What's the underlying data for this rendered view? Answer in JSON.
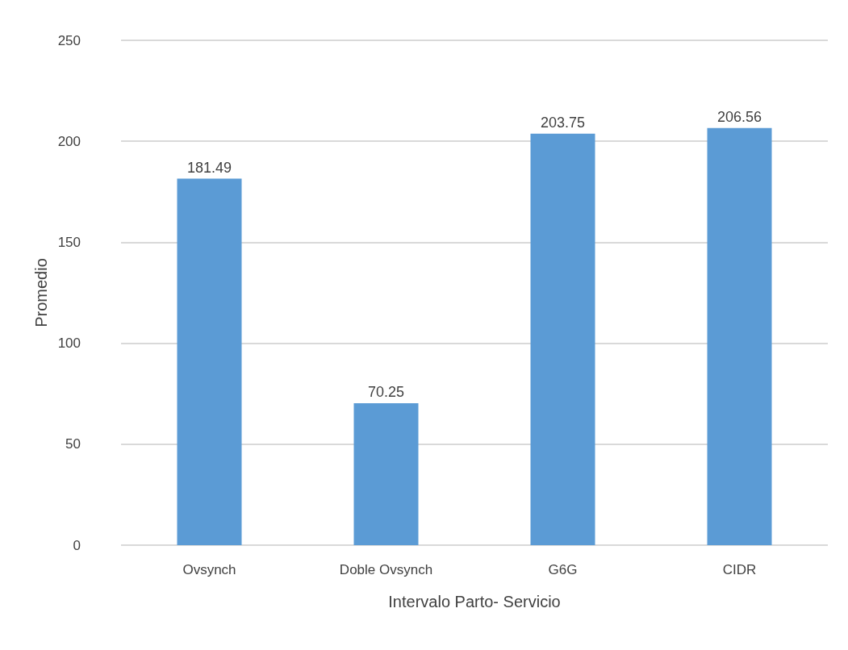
{
  "chart_data": {
    "type": "bar",
    "xlabel": "Intervalo Parto- Servicio",
    "ylabel": "Promedio",
    "categories": [
      "Ovsynch",
      "Doble Ovsynch",
      "G6G",
      "CIDR"
    ],
    "values": [
      181.49,
      70.25,
      203.75,
      206.56
    ],
    "color": "#5b9bd5",
    "ylim": [
      0,
      250
    ],
    "yticks": [
      0,
      50,
      100,
      150,
      200,
      250
    ],
    "grid": "y",
    "data_labels": true
  }
}
